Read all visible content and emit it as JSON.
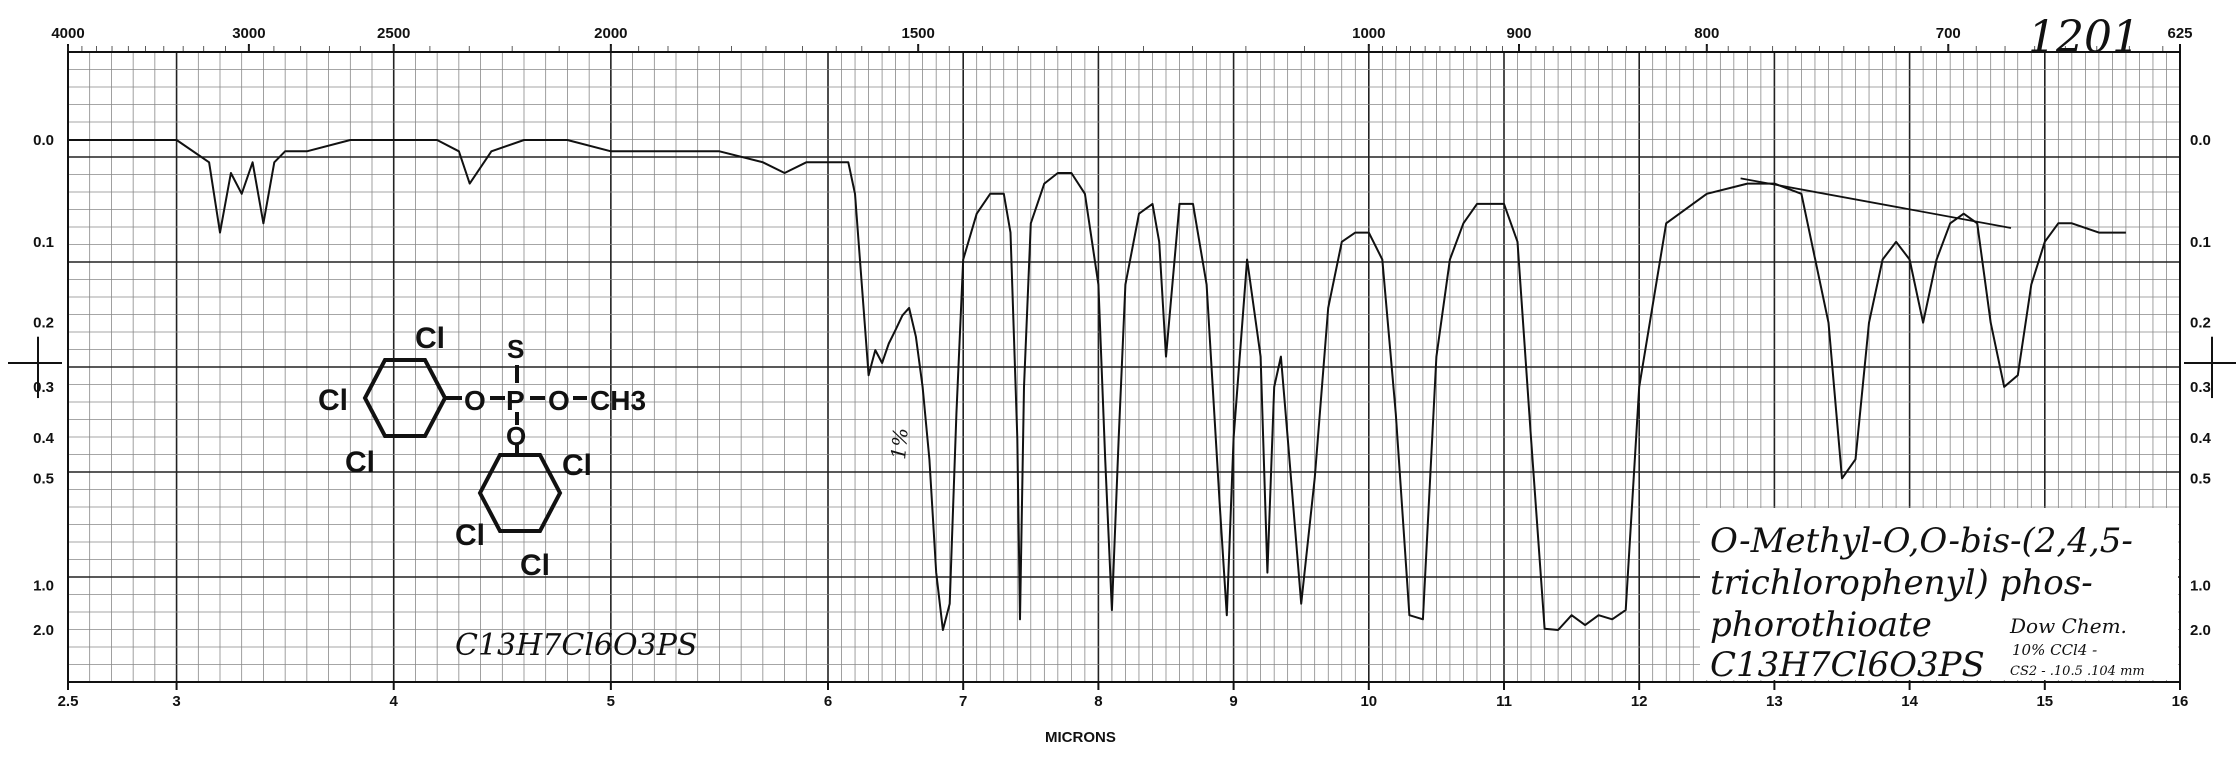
{
  "chart_data": {
    "type": "line",
    "title": "",
    "xlabel": "MICRONS",
    "ylabel": "",
    "xlim": [
      2.5,
      16
    ],
    "ylim": [
      0.0,
      2.0
    ],
    "y_scale": "absorbance (log)",
    "grid": true,
    "top_axis_label": "",
    "top_ticks": [
      "4000",
      "3000",
      "2500",
      "2000",
      "1500",
      "1000",
      "900",
      "800",
      "700",
      "625"
    ],
    "x_tick_labels": [
      "2.5",
      "3",
      "4",
      "5",
      "6",
      "7",
      "8",
      "9",
      "10",
      "11",
      "12",
      "13",
      "14",
      "15",
      "16"
    ],
    "y_tick_labels": [
      "0.0",
      "0.1",
      "0.2",
      "0.3",
      "0.4",
      "0.5",
      "1.0",
      "2.0"
    ],
    "series": [
      {
        "x": [
          2.5,
          2.8,
          3.0,
          3.15,
          3.2,
          3.25,
          3.3,
          3.35,
          3.4,
          3.45,
          3.5,
          3.6,
          3.8,
          4.0,
          4.2,
          4.3,
          4.35,
          4.45,
          4.6,
          4.8,
          5.0,
          5.2,
          5.5,
          5.7,
          5.8,
          5.9,
          6.0,
          6.1,
          6.15,
          6.2,
          6.25,
          6.3,
          6.35,
          6.4,
          6.45,
          6.5,
          6.55,
          6.6,
          6.65,
          6.7,
          6.75,
          6.8,
          6.85,
          6.9,
          6.95,
          7.0,
          7.1,
          7.2,
          7.3,
          7.35,
          7.4,
          7.42,
          7.45,
          7.5,
          7.6,
          7.7,
          7.8,
          7.9,
          8.0,
          8.05,
          8.1,
          8.15,
          8.2,
          8.3,
          8.4,
          8.45,
          8.5,
          8.6,
          8.7,
          8.8,
          8.9,
          8.95,
          9.0,
          9.1,
          9.2,
          9.25,
          9.3,
          9.35,
          9.4,
          9.5,
          9.6,
          9.7,
          9.8,
          9.9,
          10.0,
          10.1,
          10.2,
          10.3,
          10.4,
          10.5,
          10.6,
          10.7,
          10.8,
          10.9,
          11.0,
          11.1,
          11.2,
          11.3,
          11.4,
          11.5,
          11.6,
          11.7,
          11.8,
          11.9,
          12.0,
          12.2,
          12.5,
          12.8,
          13.0,
          13.2,
          13.4,
          13.5,
          13.6,
          13.7,
          13.8,
          13.9,
          14.0,
          14.1,
          14.2,
          14.3,
          14.4,
          14.5,
          14.6,
          14.7,
          14.8,
          14.9,
          15.0,
          15.1,
          15.2,
          15.4,
          15.6
        ],
        "y": [
          0.0,
          0.0,
          0.0,
          0.02,
          0.09,
          0.03,
          0.05,
          0.02,
          0.08,
          0.02,
          0.01,
          0.01,
          0.0,
          0.0,
          0.0,
          0.01,
          0.04,
          0.01,
          0.0,
          0.0,
          0.01,
          0.01,
          0.01,
          0.02,
          0.03,
          0.02,
          0.02,
          0.02,
          0.02,
          0.05,
          0.15,
          0.28,
          0.24,
          0.26,
          0.23,
          0.21,
          0.19,
          0.18,
          0.22,
          0.3,
          0.45,
          0.9,
          2.0,
          1.2,
          0.35,
          0.12,
          0.07,
          0.05,
          0.05,
          0.09,
          0.4,
          1.5,
          0.3,
          0.08,
          0.04,
          0.03,
          0.03,
          0.05,
          0.15,
          0.45,
          1.3,
          0.4,
          0.15,
          0.07,
          0.06,
          0.1,
          0.25,
          0.06,
          0.06,
          0.15,
          0.6,
          1.4,
          0.4,
          0.12,
          0.25,
          0.9,
          0.3,
          0.25,
          0.4,
          1.2,
          0.5,
          0.18,
          0.1,
          0.09,
          0.09,
          0.12,
          0.35,
          1.4,
          1.5,
          0.25,
          0.12,
          0.08,
          0.06,
          0.06,
          0.06,
          0.1,
          0.4,
          1.9,
          2.0,
          1.4,
          1.7,
          1.4,
          1.5,
          1.3,
          0.3,
          0.08,
          0.05,
          0.04,
          0.04,
          0.05,
          0.2,
          0.5,
          0.45,
          0.2,
          0.12,
          0.1,
          0.12,
          0.2,
          0.12,
          0.08,
          0.07,
          0.08,
          0.2,
          0.3,
          0.28,
          0.15,
          0.1,
          0.08,
          0.08,
          0.09,
          0.09
        ]
      }
    ],
    "annotations": [
      "1201",
      "1%"
    ]
  },
  "structure": {
    "substituents": [
      "Cl",
      "Cl",
      "Cl",
      "Cl",
      "Cl",
      "Cl",
      "S",
      "O",
      "O",
      "P",
      "O",
      "CH3"
    ],
    "formula": "C13H7Cl6O3PS"
  },
  "label_note": {
    "name_lines": [
      "O-Methyl-O,O-bis-(2,4,5-",
      "trichlorophenyl) phos-",
      "phorothioate"
    ],
    "formula": "C13H7Cl6O3PS",
    "source_lines": [
      "Dow Chem.",
      "10% CCl4 -",
      "CS2 - .10.5 .104 mm"
    ]
  }
}
